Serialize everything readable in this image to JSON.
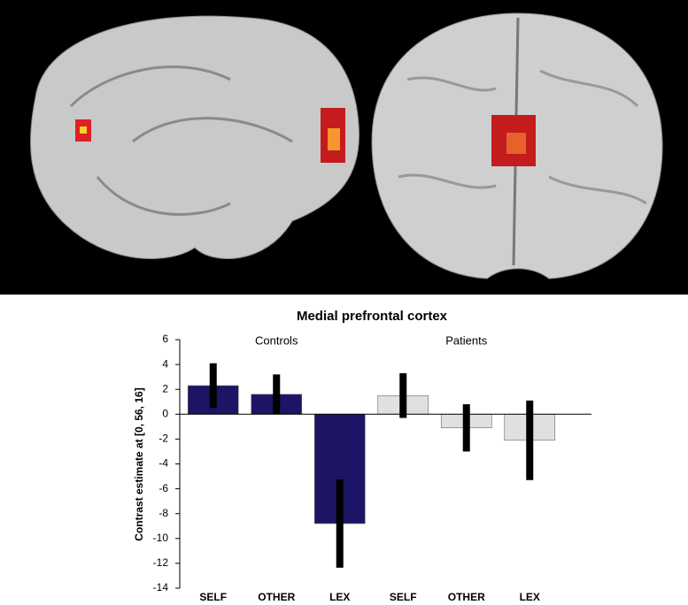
{
  "chart_data": {
    "type": "bar",
    "title": "Medial prefrontal cortex",
    "y_label": "Contrast estimate at [0, 56, 16]",
    "categories": [
      "SELF",
      "OTHER",
      "LEX",
      "SELF",
      "OTHER",
      "LEX"
    ],
    "series": [
      {
        "name": "Controls",
        "color": "#1c1565",
        "values": [
          2.3,
          1.6,
          -8.8,
          null,
          null,
          null
        ],
        "errors": [
          1.8,
          1.6,
          3.55,
          null,
          null,
          null
        ]
      },
      {
        "name": "Patients",
        "color": "#e0e0e0",
        "values": [
          null,
          null,
          null,
          1.5,
          -1.1,
          -2.1
        ],
        "errors": [
          null,
          null,
          null,
          1.8,
          1.9,
          3.2
        ]
      }
    ],
    "ylim": [
      -14,
      6
    ],
    "yticks": [
      -14,
      -12,
      -10,
      -8,
      -6,
      -4,
      -2,
      0,
      2,
      4,
      6
    ]
  }
}
